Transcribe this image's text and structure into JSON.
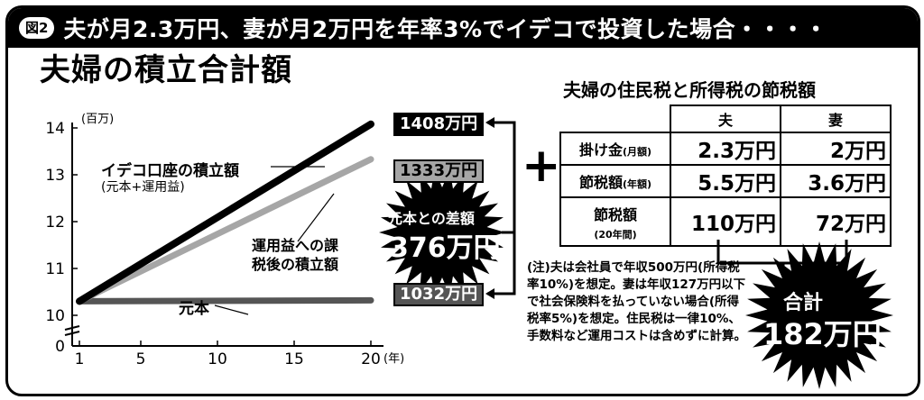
{
  "header": {
    "figure_badge": "図2",
    "title": "夫が月2.3万円、妻が月2万円を年率3%でイデコで投資した場合・・・・"
  },
  "chart_heading": "夫婦の積立合計額",
  "chart_data": {
    "type": "line",
    "title": "夫婦の積立合計額",
    "ylabel": "(百万)",
    "xlabel": "(年)",
    "ylim": [
      0,
      14
    ],
    "y_axis_break": true,
    "xticks": [
      1,
      5,
      10,
      15,
      20
    ],
    "yticks": [
      0,
      10,
      11,
      12,
      13,
      14
    ],
    "x": [
      1,
      20
    ],
    "grid": false,
    "series": [
      {
        "name": "イデコ口座の積立額",
        "name_sub": "(元本+運用益)",
        "values": [
          10.3,
          14.08
        ],
        "end_label": "1408万円",
        "color": "#000000"
      },
      {
        "name": "運用益への課税後の積立額",
        "values": [
          10.3,
          13.33
        ],
        "end_label": "1333万円",
        "color": "#a6a6a6"
      },
      {
        "name": "元本",
        "values": [
          10.3,
          10.32
        ],
        "end_label": "1032万円",
        "color": "#555555"
      }
    ],
    "annotations": {
      "difference_label": "元本との差額",
      "difference_value": "376万円",
      "plus_sign": "+"
    }
  },
  "tax_table": {
    "heading": "夫婦の住民税と所得税の節税額",
    "columns": [
      "夫",
      "妻"
    ],
    "rows": [
      {
        "label": "掛け金",
        "sub": "(月額)",
        "values": [
          "2.3万円",
          "2万円"
        ]
      },
      {
        "label": "節税額",
        "sub": "(年額)",
        "values": [
          "5.5万円",
          "3.6万円"
        ]
      },
      {
        "label": "節税額",
        "sub": "(20年間)",
        "values": [
          "110万円",
          "72万円"
        ]
      }
    ],
    "total_label": "合計",
    "total_value": "182万円"
  },
  "note": "(注)夫は会社員で年収500万円(所得税率10%)を想定。妻は年収127万円以下で社会保険料を払っていない場合(所得税率5%)を想定。住民税は一律10%、手数料など運用コストは含めずに計算。"
}
